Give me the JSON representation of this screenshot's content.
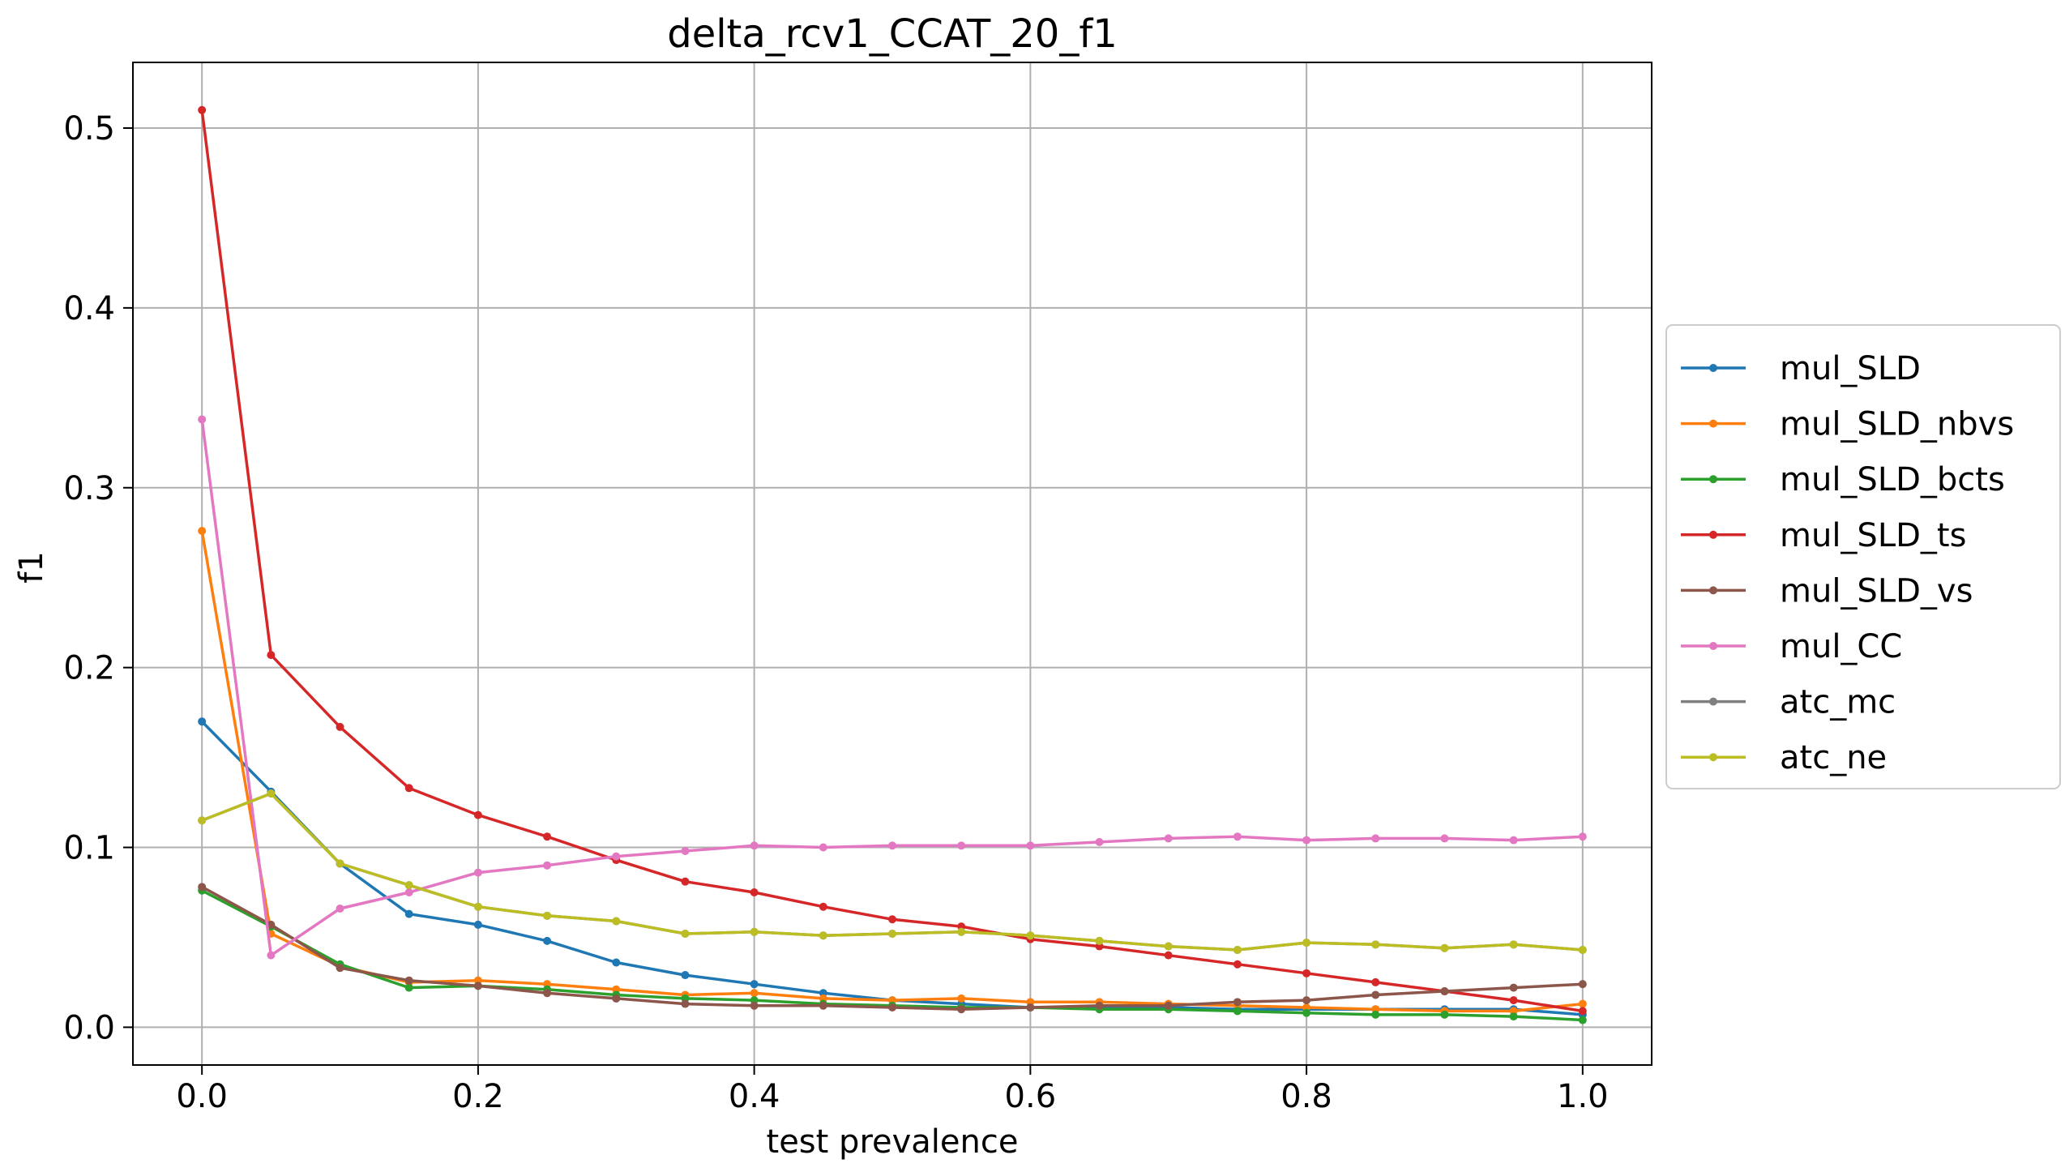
{
  "chart_data": {
    "type": "line",
    "title": "delta_rcv1_CCAT_20_f1",
    "xlabel": "test prevalence",
    "ylabel": "f1",
    "xlim": [
      -0.05,
      1.05
    ],
    "ylim": [
      -0.021,
      0.5365
    ],
    "x_ticks": [
      0.0,
      0.2,
      0.4,
      0.6,
      0.8,
      1.0
    ],
    "x_tick_labels": [
      "0.0",
      "0.2",
      "0.4",
      "0.6",
      "0.8",
      "1.0"
    ],
    "y_ticks": [
      0.0,
      0.1,
      0.2,
      0.3,
      0.4,
      0.5
    ],
    "y_tick_labels": [
      "0.0",
      "0.1",
      "0.2",
      "0.3",
      "0.4",
      "0.5"
    ],
    "grid": true,
    "legend_position": "outside-right",
    "x": [
      0.0,
      0.05,
      0.1,
      0.15,
      0.2,
      0.25,
      0.3,
      0.35,
      0.4,
      0.45,
      0.5,
      0.55,
      0.6,
      0.65,
      0.7,
      0.75,
      0.8,
      0.85,
      0.9,
      0.95,
      1.0
    ],
    "series": [
      {
        "name": "mul_SLD",
        "color": "#1f77b4",
        "values": [
          0.17,
          0.131,
          0.091,
          0.063,
          0.057,
          0.048,
          0.036,
          0.029,
          0.024,
          0.019,
          0.015,
          0.013,
          0.011,
          0.011,
          0.011,
          0.01,
          0.01,
          0.01,
          0.01,
          0.01,
          0.007
        ]
      },
      {
        "name": "mul_SLD_nbvs",
        "color": "#ff7f0e",
        "values": [
          0.276,
          0.052,
          0.034,
          0.025,
          0.026,
          0.024,
          0.021,
          0.018,
          0.019,
          0.016,
          0.015,
          0.016,
          0.014,
          0.014,
          0.013,
          0.012,
          0.011,
          0.01,
          0.009,
          0.009,
          0.013
        ]
      },
      {
        "name": "mul_SLD_bcts",
        "color": "#2ca02c",
        "values": [
          0.076,
          0.056,
          0.035,
          0.022,
          0.023,
          0.021,
          0.018,
          0.016,
          0.015,
          0.013,
          0.012,
          0.011,
          0.011,
          0.01,
          0.01,
          0.009,
          0.008,
          0.007,
          0.007,
          0.006,
          0.004
        ]
      },
      {
        "name": "mul_SLD_ts",
        "color": "#d62728",
        "values": [
          0.51,
          0.207,
          0.167,
          0.133,
          0.118,
          0.106,
          0.093,
          0.081,
          0.075,
          0.067,
          0.06,
          0.056,
          0.049,
          0.045,
          0.04,
          0.035,
          0.03,
          0.025,
          0.02,
          0.015,
          0.009
        ]
      },
      {
        "name": "mul_SLD_vs",
        "color": "#8c564b",
        "values": [
          0.078,
          0.057,
          0.033,
          0.026,
          0.023,
          0.019,
          0.016,
          0.013,
          0.012,
          0.012,
          0.011,
          0.01,
          0.011,
          0.012,
          0.012,
          0.014,
          0.015,
          0.018,
          0.02,
          0.022,
          0.024
        ]
      },
      {
        "name": "mul_CC",
        "color": "#e377c2",
        "values": [
          0.338,
          0.04,
          0.066,
          0.075,
          0.086,
          0.09,
          0.095,
          0.098,
          0.101,
          0.1,
          0.101,
          0.101,
          0.101,
          0.103,
          0.105,
          0.106,
          0.104,
          0.105,
          0.105,
          0.104,
          0.106
        ]
      },
      {
        "name": "atc_mc",
        "color": "#7f7f7f",
        "values": [
          0.115,
          0.13,
          0.091,
          0.079,
          0.067,
          0.062,
          0.059,
          0.052,
          0.053,
          0.051,
          0.052,
          0.053,
          0.051,
          0.048,
          0.045,
          0.043,
          0.047,
          0.046,
          0.044,
          0.046,
          0.043
        ]
      },
      {
        "name": "atc_ne",
        "color": "#bcbd22",
        "values": [
          0.115,
          0.13,
          0.091,
          0.079,
          0.067,
          0.062,
          0.059,
          0.052,
          0.053,
          0.051,
          0.052,
          0.053,
          0.051,
          0.048,
          0.045,
          0.043,
          0.047,
          0.046,
          0.044,
          0.046,
          0.043
        ]
      }
    ]
  }
}
